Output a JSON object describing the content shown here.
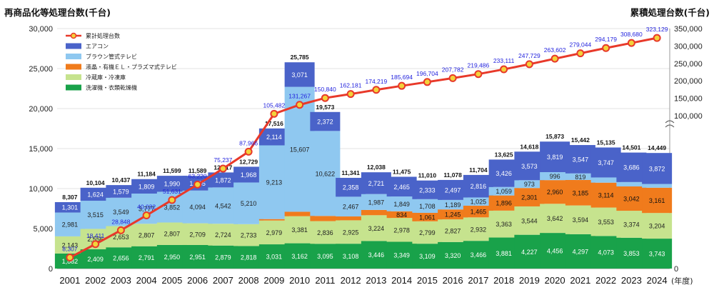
{
  "chart_data": {
    "type": "bar",
    "y_left_title": "再商品化等処理台数(千台)",
    "y_right_title": "累積処理台数(千台)",
    "x_unit": "(年度)",
    "ylim_left": [
      0,
      30000
    ],
    "ylim_right": [
      0,
      350000
    ],
    "left_ticks": [
      "0",
      "5,000",
      "10,000",
      "15,000",
      "20,000",
      "25,000",
      "30,000"
    ],
    "right_ticks": [
      "0",
      "100,000",
      "150,000",
      "200,000",
      "250,000",
      "300,000",
      "350,000"
    ],
    "categories": [
      "2001",
      "2002",
      "2003",
      "2004",
      "2005",
      "2006",
      "2007",
      "2008",
      "2009",
      "2010",
      "2011",
      "2012",
      "2013",
      "2014",
      "2015",
      "2016",
      "2017",
      "2018",
      "2019",
      "2020",
      "2021",
      "2022",
      "2023",
      "2024"
    ],
    "series": [
      {
        "name": "洗濯機・衣類乾燥機",
        "color": "#19a24a",
        "label_color": "#ffffff",
        "values": [
          1882,
          2409,
          2656,
          2791,
          2950,
          2951,
          2879,
          2818,
          3031,
          3162,
          3095,
          3108,
          3446,
          3349,
          3109,
          3320,
          3466,
          3881,
          4227,
          4456,
          4297,
          4073,
          3853,
          3743
        ]
      },
      {
        "name": "冷蔵庫・冷凍庫",
        "color": "#c6e38e",
        "label_color": "#222222",
        "values": [
          2143,
          2556,
          2653,
          2807,
          2807,
          2709,
          2724,
          2733,
          2979,
          3381,
          2836,
          2925,
          3224,
          2978,
          2799,
          2827,
          2932,
          3363,
          3544,
          3642,
          3594,
          3553,
          3374,
          3204
        ]
      },
      {
        "name": "液晶・有機ＥＬ・プラズマ式テレビ",
        "color": "#f07b1c",
        "label_color": "#111111",
        "values": [
          0,
          0,
          0,
          0,
          0,
          0,
          0,
          0,
          179,
          564,
          648,
          483,
          660,
          834,
          1061,
          1245,
          1465,
          1896,
          2301,
          2960,
          3185,
          3114,
          3042,
          3161
        ]
      },
      {
        "name": "ブラウン管式テレビ",
        "color": "#8fc8f0",
        "label_color": "#222222",
        "values": [
          2981,
          3515,
          3549,
          3777,
          3852,
          4094,
          4542,
          5210,
          9213,
          15607,
          10622,
          2467,
          1987,
          1849,
          1708,
          1189,
          1025,
          1059,
          973,
          996,
          819,
          648,
          546,
          469
        ]
      },
      {
        "name": "エアコン",
        "color": "#4a63c9",
        "label_color": "#ffffff",
        "values": [
          1301,
          1624,
          1579,
          1809,
          1990,
          1835,
          1872,
          1968,
          2114,
          3071,
          2372,
          2358,
          2721,
          2465,
          2333,
          2497,
          2816,
          3426,
          3573,
          3819,
          3547,
          3747,
          3686,
          3872
        ]
      }
    ],
    "totals": [
      8307,
      10104,
      10437,
      11184,
      11599,
      11589,
      12017,
      12729,
      17516,
      25785,
      19573,
      11341,
      12038,
      11475,
      11010,
      11078,
      11704,
      13625,
      14618,
      15873,
      15442,
      15135,
      14501,
      14449
    ],
    "cumulative": {
      "name": "累計処理台数",
      "color": "#e8392a",
      "values": [
        8307,
        18411,
        28848,
        40032,
        51631,
        63220,
        75237,
        87966,
        105482,
        131267,
        150840,
        162181,
        174219,
        185694,
        196704,
        207782,
        219486,
        233111,
        247729,
        263602,
        279044,
        294179,
        308680,
        323129
      ]
    },
    "legend_placement": "top-left"
  }
}
